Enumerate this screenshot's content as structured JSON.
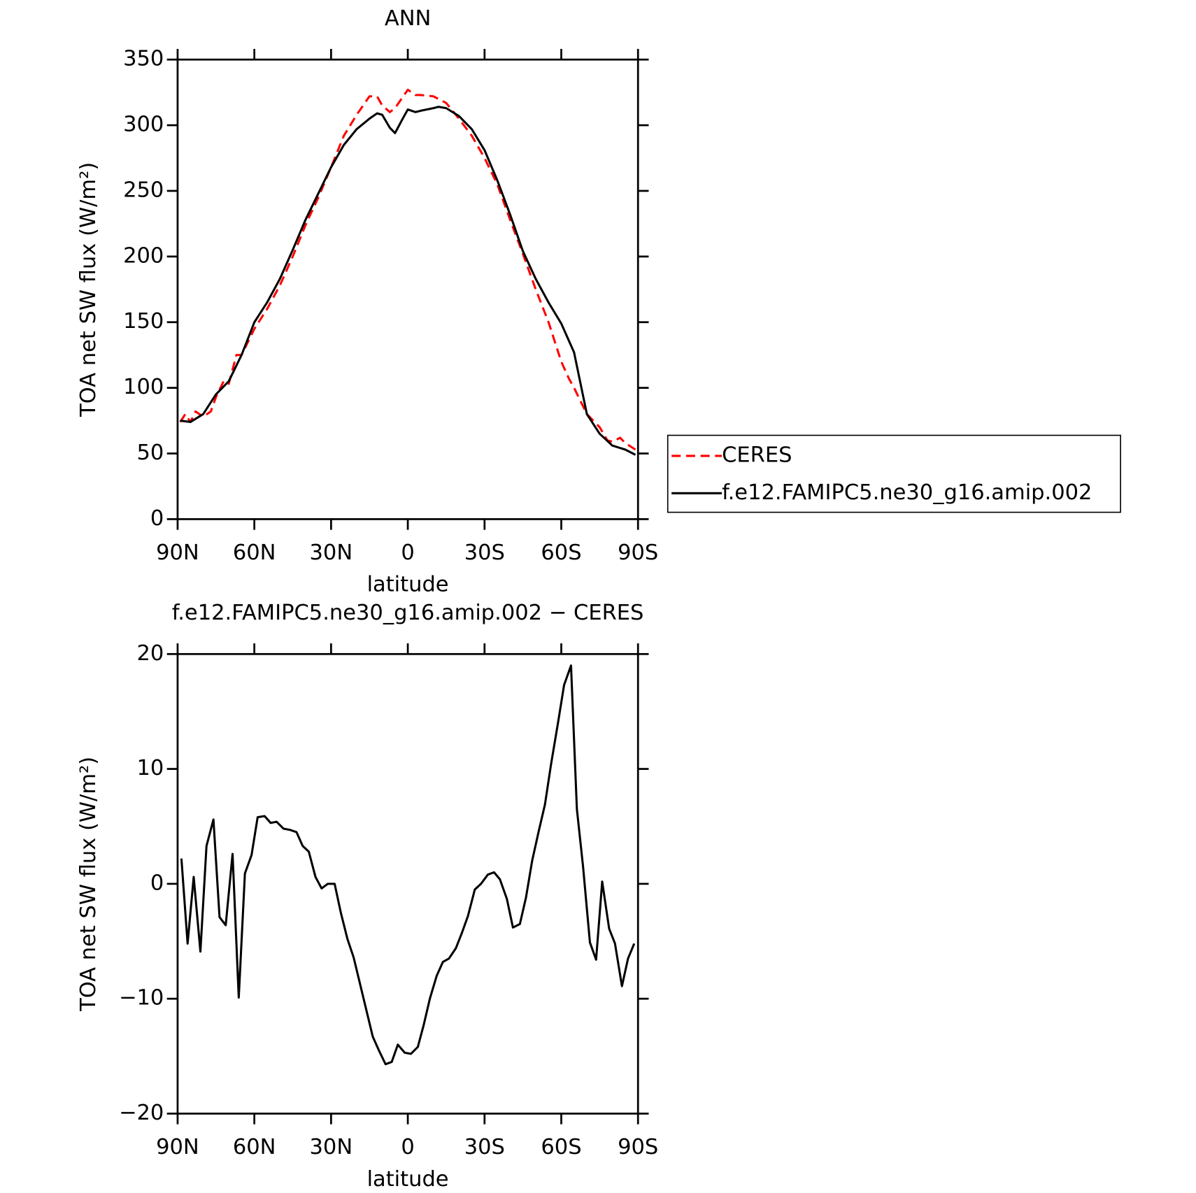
{
  "chart_data": [
    {
      "type": "line",
      "title": "ANN",
      "xlabel": "latitude",
      "ylabel": "TOA net SW flux (W/m²)",
      "xlim": [
        90,
        -90
      ],
      "ylim": [
        0,
        350
      ],
      "xticks": [
        {
          "value": 90,
          "label": "90N"
        },
        {
          "value": 60,
          "label": "60N"
        },
        {
          "value": 30,
          "label": "30N"
        },
        0,
        {
          "value": -30,
          "label": "30S"
        },
        {
          "value": -60,
          "label": "60S"
        },
        {
          "value": -90,
          "label": "90S"
        }
      ],
      "yticks": [
        0,
        50,
        100,
        150,
        200,
        250,
        300,
        350
      ],
      "legend": "right",
      "series": [
        {
          "name": "CERES",
          "color": "#ff0000",
          "line_style": "dashed",
          "x": [
            89,
            87,
            85,
            83,
            80,
            77,
            75,
            72,
            70,
            67,
            65,
            60,
            55,
            50,
            45,
            40,
            35,
            30,
            25,
            20,
            15,
            12,
            10,
            7,
            5,
            0,
            -3,
            -5,
            -10,
            -15,
            -20,
            -25,
            -30,
            -35,
            -40,
            -45,
            -50,
            -55,
            -60,
            -63,
            -65,
            -70,
            -75,
            -78,
            -80,
            -83,
            -85,
            -89
          ],
          "values": [
            74,
            80,
            74,
            82,
            78,
            82,
            93,
            105,
            103,
            125,
            125,
            145,
            160,
            178,
            200,
            224,
            245,
            268,
            292,
            308,
            322,
            322,
            315,
            310,
            313,
            327,
            323,
            323,
            322,
            317,
            305,
            292,
            275,
            255,
            228,
            202,
            175,
            150,
            120,
            107,
            100,
            80,
            70,
            60,
            59,
            62,
            58,
            53
          ]
        },
        {
          "name": "f.e12.FAMIPC5.ne30_g16.amip.002",
          "color": "#000000",
          "line_style": "solid",
          "x": [
            89,
            85,
            80,
            75,
            70,
            65,
            60,
            55,
            50,
            45,
            40,
            35,
            30,
            25,
            20,
            15,
            12,
            10,
            7,
            5,
            2,
            0,
            -3,
            -5,
            -10,
            -12,
            -15,
            -20,
            -25,
            -30,
            -35,
            -40,
            -45,
            -50,
            -55,
            -60,
            -65,
            -70,
            -75,
            -80,
            -85,
            -89
          ],
          "values": [
            75,
            74,
            80,
            95,
            105,
            125,
            150,
            165,
            183,
            205,
            228,
            248,
            268,
            285,
            297,
            305,
            309,
            308,
            298,
            294,
            305,
            312,
            310,
            311,
            313,
            314,
            313,
            307,
            297,
            281,
            258,
            232,
            204,
            183,
            165,
            149,
            127,
            80,
            65,
            56,
            53,
            49
          ]
        }
      ]
    },
    {
      "type": "line",
      "title": "f.e12.FAMIPC5.ne30_g16.amip.002 − CERES",
      "xlabel": "latitude",
      "ylabel": "TOA net SW flux (W/m²)",
      "xlim": [
        90,
        -90
      ],
      "ylim": [
        -20,
        20
      ],
      "xticks": [
        {
          "value": 90,
          "label": "90N"
        },
        {
          "value": 60,
          "label": "60N"
        },
        {
          "value": 30,
          "label": "30N"
        },
        0,
        {
          "value": -30,
          "label": "30S"
        },
        {
          "value": -60,
          "label": "60S"
        },
        {
          "value": -90,
          "label": "90S"
        }
      ],
      "yticks": [
        {
          "value": -20,
          "label": "−20"
        },
        {
          "value": -10,
          "label": "−10"
        },
        0,
        10,
        20
      ],
      "series": [
        {
          "color": "#000000",
          "line_style": "solid",
          "x": [
            88.5,
            86.1,
            83.7,
            81.1,
            78.7,
            76,
            73.6,
            71.2,
            68.5,
            66.1,
            63.7,
            61.1,
            58.7,
            56,
            53.6,
            51.3,
            48.6,
            46.2,
            43.5,
            41.1,
            38.7,
            36.1,
            33.7,
            31.3,
            28.6,
            26.2,
            23.6,
            21.2,
            18.8,
            16.1,
            13.7,
            11.3,
            8.7,
            6.3,
            3.9,
            1.2,
            -1.2,
            -3.9,
            -6.2,
            -8.6,
            -11.3,
            -13.7,
            -16.1,
            -18.8,
            -21.1,
            -23.5,
            -26.2,
            -28.6,
            -31.3,
            -33.7,
            -36,
            -38.7,
            -41.1,
            -43.8,
            -46.2,
            -48.6,
            -51.2,
            -53.6,
            -56,
            -58.7,
            -61.1,
            -63.8,
            -66.1,
            -68.5,
            -71.2,
            -73.6,
            -76,
            -78.7,
            -81,
            -83.7,
            -86.1,
            -88.5
          ],
          "values": [
            2.2,
            -5.2,
            0.6,
            -5.9,
            3.3,
            5.6,
            -2.9,
            -3.6,
            2.6,
            -9.9,
            0.9,
            2.5,
            5.8,
            5.9,
            5.3,
            5.4,
            4.8,
            4.7,
            4.5,
            3.3,
            2.8,
            0.6,
            -0.4,
            0,
            0,
            -2.5,
            -4.8,
            -6.4,
            -8.6,
            -11.1,
            -13.3,
            -14.5,
            -15.7,
            -15.5,
            -14,
            -14.7,
            -14.8,
            -14.2,
            -12.3,
            -10,
            -8,
            -6.8,
            -6.5,
            -5.6,
            -4.3,
            -2.8,
            -0.5,
            0,
            0.8,
            1,
            0.4,
            -1.3,
            -3.8,
            -3.5,
            -1.2,
            2,
            4.6,
            6.9,
            10.4,
            14,
            17.3,
            19,
            6.5,
            1.5,
            -5.1,
            -6.6,
            0.2,
            -3.9,
            -5.2,
            -8.9,
            -6.5,
            -5.2
          ]
        }
      ]
    }
  ]
}
